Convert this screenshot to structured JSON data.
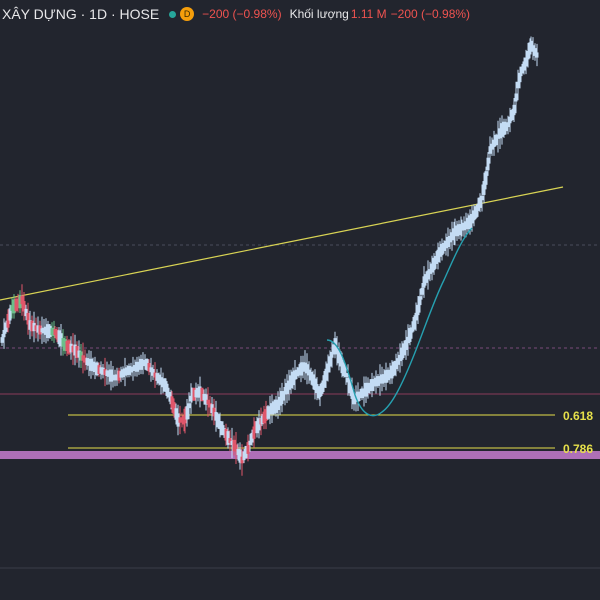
{
  "header": {
    "symbol_title": "XÂY DỰNG · 1D · HOSE",
    "status_dot_color": "#26a69a",
    "d_badge": "D",
    "d_badge_color": "#f59e0b",
    "price_change": "−200 (−0.98%)",
    "volume_label": "Khối lượng",
    "volume_value": "1.11 M",
    "volume_change": "−200 (−0.98%)",
    "negative_color": "#ef5350"
  },
  "chart_data": {
    "type": "candlestick",
    "series": [
      {
        "name": "price"
      }
    ],
    "fib_levels": [
      {
        "label": "0.618",
        "color": "#e6e04a"
      },
      {
        "label": "0.786",
        "color": "#e6e04a"
      }
    ],
    "trendline_color": "#d9d454",
    "ma_color": "#26a0b0",
    "support_band_color": "#c77dcf",
    "up_color": "#c4dcf4",
    "down_color": "#c4dcf4",
    "background": "#22252e",
    "grid": true
  }
}
